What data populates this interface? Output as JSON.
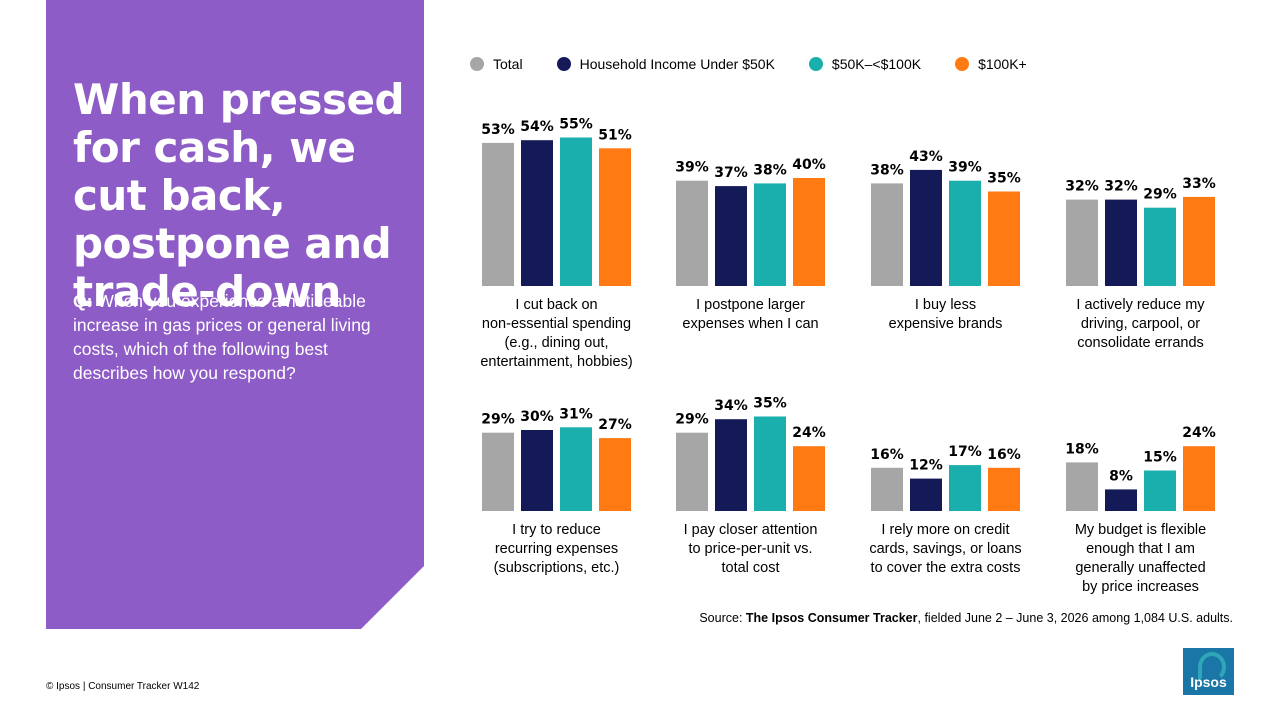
{
  "title": "When pressed for cash, we cut back, postpone and trade-down",
  "question": {
    "prefix": "Q:",
    "text": "When you experience a noticeable increase in gas prices or general living costs, which of the following best describes how you respond?"
  },
  "legend": [
    {
      "label": "Total",
      "color": "#a6a6a6"
    },
    {
      "label": "Household Income Under $50K",
      "color": "#141a57"
    },
    {
      "label": "$50K–<$100K",
      "color": "#1aafad"
    },
    {
      "label": "$100K+",
      "color": "#ff7a12"
    }
  ],
  "chart_data": {
    "type": "bar",
    "series": [
      {
        "name": "Total",
        "color": "#a6a6a6"
      },
      {
        "name": "Household Income Under $50K",
        "color": "#141a57"
      },
      {
        "name": "$50K–<$100K",
        "color": "#1aafad"
      },
      {
        "name": "$100K+",
        "color": "#ff7a12"
      }
    ],
    "value_suffix": "%",
    "groups": [
      {
        "label": [
          "I cut back on",
          "non-essential spending",
          "(e.g., dining out,",
          "entertainment, hobbies)"
        ],
        "values": [
          53,
          54,
          55,
          51
        ]
      },
      {
        "label": [
          "I postpone larger",
          "expenses when I can"
        ],
        "values": [
          39,
          37,
          38,
          40
        ]
      },
      {
        "label": [
          "I buy less",
          "expensive brands"
        ],
        "values": [
          38,
          43,
          39,
          35
        ]
      },
      {
        "label": [
          "I actively reduce my",
          "driving, carpool, or",
          "consolidate errands"
        ],
        "values": [
          32,
          32,
          29,
          33
        ]
      },
      {
        "label": [
          "I try to reduce",
          "recurring expenses",
          "(subscriptions, etc.)"
        ],
        "values": [
          29,
          30,
          31,
          27
        ]
      },
      {
        "label": [
          "I pay closer attention",
          "to price-per-unit vs.",
          "total cost"
        ],
        "values": [
          29,
          34,
          35,
          24
        ]
      },
      {
        "label": [
          "I rely more on credit",
          "cards, savings, or loans",
          "to cover the extra costs"
        ],
        "values": [
          16,
          12,
          17,
          16
        ]
      },
      {
        "label": [
          "My budget is flexible",
          "enough that I am",
          "generally unaffected",
          "by price increases"
        ],
        "values": [
          18,
          8,
          15,
          24
        ]
      }
    ]
  },
  "source": {
    "prefix": "Source: ",
    "name": "The Ipsos Consumer Tracker",
    "suffix": ", fielded June 2 – June 3, 2026 among 1,084 U.S. adults."
  },
  "footer": "© Ipsos | Consumer Tracker W142",
  "logo_text": "Ipsos"
}
